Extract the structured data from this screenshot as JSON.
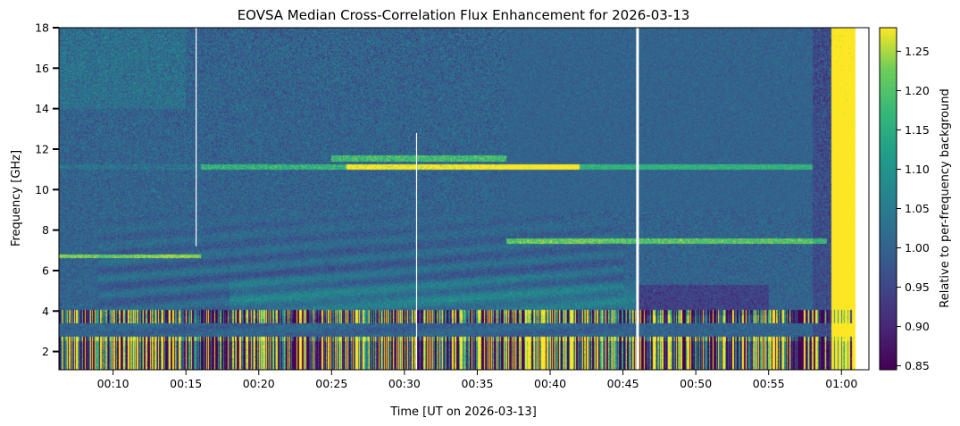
{
  "chart_data": {
    "type": "heatmap",
    "title": "EOVSA Median Cross-Correlation Flux Enhancement for 2026-03-13",
    "xlabel": "Time [UT on 2026-03-13]",
    "ylabel": "Frequency [GHz]",
    "x_ticks": [
      "00:10",
      "00:15",
      "00:20",
      "00:25",
      "00:30",
      "00:35",
      "00:40",
      "00:45",
      "00:50",
      "00:55",
      "01:00"
    ],
    "x_range": [
      "00:06:17",
      "01:01:53"
    ],
    "y_ticks": [
      2,
      4,
      6,
      8,
      10,
      12,
      14,
      16,
      18
    ],
    "ylim": [
      1.1,
      18
    ],
    "colormap": "viridis",
    "colorbar": {
      "label": "Relative to per-frequency background",
      "ticks": [
        0.85,
        0.9,
        0.95,
        1.0,
        1.05,
        1.1,
        1.15,
        1.2,
        1.25
      ],
      "tick_labels": [
        "0.85",
        "0.90",
        "0.95",
        "1.00",
        "1.05",
        "1.10",
        "1.15",
        "1.20",
        "1.25"
      ],
      "range": [
        0.845,
        1.28
      ]
    },
    "data_gaps": [
      "00:15:42",
      "00:30:50",
      "00:46:00"
    ],
    "features": [
      {
        "type": "emission_band",
        "time_start": "00:06:17",
        "time_end": "00:58:00",
        "freq_ghz": 11.1
      },
      {
        "type": "emission_band",
        "time_start": "00:37:00",
        "time_end": "00:59:00",
        "freq_ghz": 7.5
      },
      {
        "type": "emission_band",
        "time_start": "00:06:17",
        "time_end": "00:16:00",
        "freq_ghz": 6.7
      },
      {
        "type": "striped_band",
        "time_start": "00:06:17",
        "time_end": "00:59:00",
        "freq_range_ghz": [
          3.4,
          4.0
        ]
      },
      {
        "type": "striped_band",
        "time_start": "00:06:17",
        "time_end": "00:59:00",
        "freq_range_ghz": [
          1.1,
          2.7
        ]
      },
      {
        "type": "broadband_enhancement",
        "time_start": "00:59:30",
        "time_end": "01:01:00",
        "freq_range_ghz": [
          1.1,
          18
        ]
      }
    ]
  }
}
